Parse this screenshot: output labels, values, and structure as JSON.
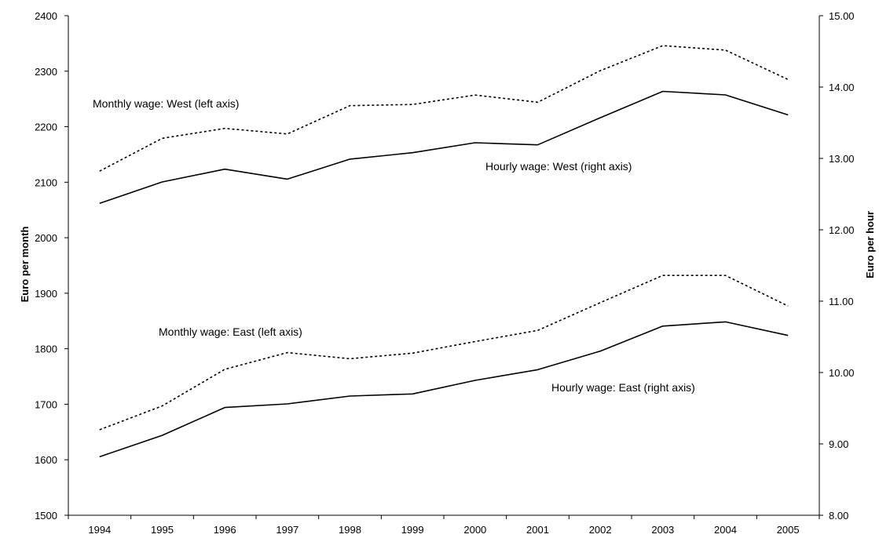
{
  "chart_data": {
    "type": "line",
    "title": "",
    "x": [
      "1994",
      "1995",
      "1996",
      "1997",
      "1998",
      "1999",
      "2000",
      "2001",
      "2002",
      "2003",
      "2004",
      "2005"
    ],
    "xlabel": "",
    "ylabel_left": "Euro per month",
    "ylabel_right": "Euro per hour",
    "ylim_left": [
      1500,
      2400
    ],
    "ylim_right": [
      8.0,
      15.0
    ],
    "yticks_left": [
      "1500",
      "1600",
      "1700",
      "1800",
      "1900",
      "2000",
      "2100",
      "2200",
      "2300",
      "2400"
    ],
    "yticks_right": [
      "8.00",
      "9.00",
      "10.00",
      "11.00",
      "12.00",
      "13.00",
      "14.00",
      "15.00"
    ],
    "grid": false,
    "series": [
      {
        "name": "Monthly wage: West (left axis)",
        "axis": "left",
        "style": "dotted",
        "color": "#000000",
        "values": [
          2120,
          2179,
          2197,
          2187,
          2238,
          2240,
          2257,
          2244,
          2301,
          2346,
          2338,
          2285
        ]
      },
      {
        "name": "Hourly wage: West (right axis)",
        "axis": "right",
        "style": "solid",
        "color": "#000000",
        "values": [
          12.37,
          12.67,
          12.85,
          12.71,
          12.99,
          13.08,
          13.22,
          13.19,
          13.57,
          13.94,
          13.89,
          13.61
        ]
      },
      {
        "name": "Monthly wage: East (left axis)",
        "axis": "left",
        "style": "dotted",
        "color": "#000000",
        "values": [
          1654,
          1697,
          1763,
          1793,
          1782,
          1792,
          1813,
          1833,
          1883,
          1932,
          1932,
          1877
        ]
      },
      {
        "name": "Hourly wage: East (right axis)",
        "axis": "right",
        "style": "solid",
        "color": "#000000",
        "values": [
          8.82,
          9.12,
          9.51,
          9.56,
          9.67,
          9.7,
          9.89,
          10.04,
          10.3,
          10.65,
          10.71,
          10.52
        ]
      }
    ]
  }
}
